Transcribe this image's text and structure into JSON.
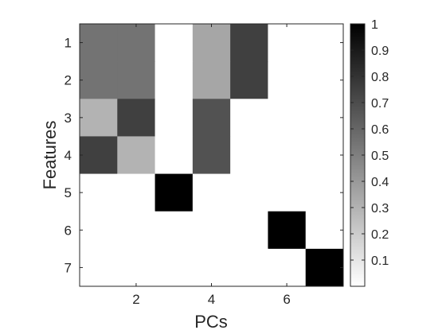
{
  "chart_data": {
    "type": "heatmap",
    "xlabel": "PCs",
    "ylabel": "Features",
    "x_categories": [
      1,
      2,
      3,
      4,
      5,
      6,
      7
    ],
    "y_categories": [
      1,
      2,
      3,
      4,
      5,
      6,
      7
    ],
    "x_tick_labels": [
      "2",
      "4",
      "6"
    ],
    "x_tick_values": [
      2,
      4,
      6
    ],
    "y_tick_labels": [
      "1",
      "2",
      "3",
      "4",
      "5",
      "6",
      "7"
    ],
    "y_tick_values": [
      1,
      2,
      3,
      4,
      5,
      6,
      7
    ],
    "values": [
      [
        0.55,
        0.55,
        0.0,
        0.35,
        0.75,
        0.0,
        0.0
      ],
      [
        0.55,
        0.55,
        0.0,
        0.35,
        0.75,
        0.0,
        0.0
      ],
      [
        0.3,
        0.75,
        0.0,
        0.68,
        0.0,
        0.0,
        0.0
      ],
      [
        0.75,
        0.3,
        0.0,
        0.68,
        0.0,
        0.0,
        0.0
      ],
      [
        0.0,
        0.0,
        1.0,
        0.0,
        0.0,
        0.0,
        0.0
      ],
      [
        0.0,
        0.0,
        0.0,
        0.0,
        0.0,
        1.0,
        0.0
      ],
      [
        0.0,
        0.0,
        0.0,
        0.0,
        0.0,
        0.0,
        1.0
      ]
    ],
    "colormap": "gray-reversed",
    "color_min": "#ffffff",
    "color_max": "#000000",
    "clim": [
      0,
      1
    ],
    "colorbar": {
      "tick_labels": [
        "0.1",
        "0.2",
        "0.3",
        "0.4",
        "0.5",
        "0.6",
        "0.7",
        "0.8",
        "0.9",
        "1"
      ],
      "tick_values": [
        0.1,
        0.2,
        0.3,
        0.4,
        0.5,
        0.6,
        0.7,
        0.8,
        0.9,
        1.0
      ],
      "placement": "right"
    },
    "grid": false
  }
}
